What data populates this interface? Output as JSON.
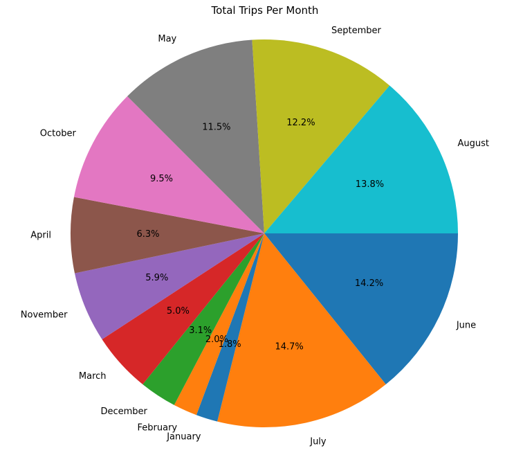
{
  "chart_data": {
    "type": "pie",
    "title": "Total Trips Per Month",
    "start_angle_deg": 0,
    "direction": "clockwise",
    "slices": [
      {
        "label": "June",
        "percent": 14.2,
        "pct_label": "14.2%",
        "color": "#1f77b4"
      },
      {
        "label": "July",
        "percent": 14.7,
        "pct_label": "14.7%",
        "color": "#ff7f0e"
      },
      {
        "label": "January",
        "percent": 1.8,
        "pct_label": "1.8%",
        "color": "#1f77b4"
      },
      {
        "label": "February",
        "percent": 2.0,
        "pct_label": "2.0%",
        "color": "#ff7f0e"
      },
      {
        "label": "December",
        "percent": 3.1,
        "pct_label": "3.1%",
        "color": "#2ca02c"
      },
      {
        "label": "March",
        "percent": 5.0,
        "pct_label": "5.0%",
        "color": "#d62728"
      },
      {
        "label": "November",
        "percent": 5.9,
        "pct_label": "5.9%",
        "color": "#9467bd"
      },
      {
        "label": "April",
        "percent": 6.3,
        "pct_label": "6.3%",
        "color": "#8c564b"
      },
      {
        "label": "October",
        "percent": 9.5,
        "pct_label": "9.5%",
        "color": "#e377c2"
      },
      {
        "label": "May",
        "percent": 11.5,
        "pct_label": "11.5%",
        "color": "#7f7f7f"
      },
      {
        "label": "September",
        "percent": 12.2,
        "pct_label": "12.2%",
        "color": "#bcbd22"
      },
      {
        "label": "August",
        "percent": 13.8,
        "pct_label": "13.8%",
        "color": "#17becf"
      }
    ]
  }
}
